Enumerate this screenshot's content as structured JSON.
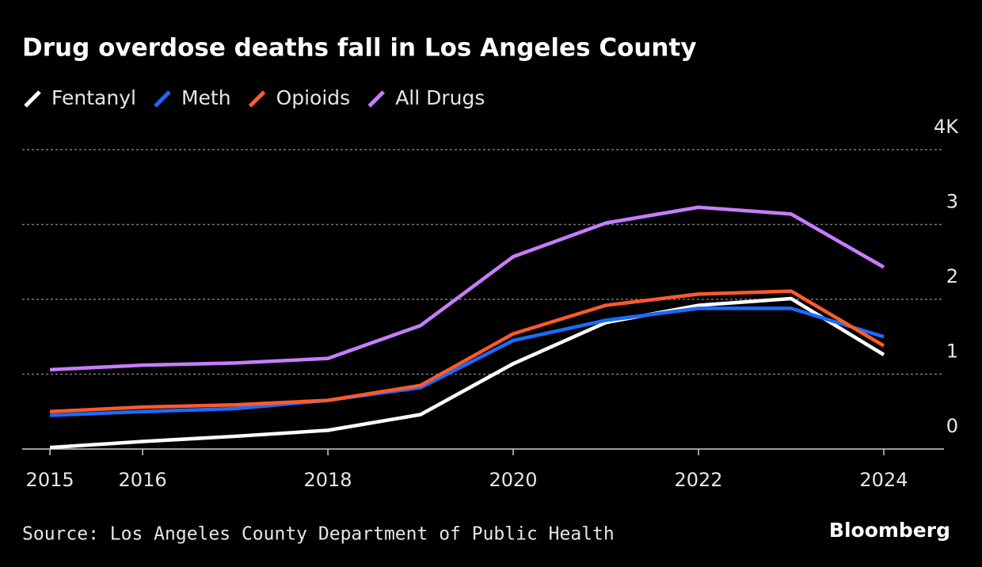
{
  "chart_data": {
    "type": "line",
    "title": "Drug overdose deaths fall in Los Angeles County",
    "source": "Source: Los Angeles County Department of Public Health",
    "brand": "Bloomberg",
    "x": [
      2015,
      2016,
      2017,
      2018,
      2019,
      2020,
      2021,
      2022,
      2023,
      2024
    ],
    "series": [
      {
        "name": "Fentanyl",
        "color": "#ffffff",
        "values": [
          0.02,
          0.1,
          0.17,
          0.25,
          0.46,
          1.14,
          1.69,
          1.92,
          2.01,
          1.26
        ]
      },
      {
        "name": "Meth",
        "color": "#1a6cff",
        "values": [
          0.45,
          0.5,
          0.54,
          0.65,
          0.82,
          1.45,
          1.72,
          1.88,
          1.88,
          1.5
        ]
      },
      {
        "name": "Opioids",
        "color": "#ff5a2c",
        "values": [
          0.5,
          0.56,
          0.59,
          0.65,
          0.85,
          1.54,
          1.92,
          2.07,
          2.11,
          1.38
        ]
      },
      {
        "name": "All Drugs",
        "color": "#c77dff",
        "values": [
          1.06,
          1.12,
          1.15,
          1.21,
          1.65,
          2.57,
          3.02,
          3.23,
          3.14,
          2.43
        ]
      }
    ],
    "xlim": [
      2014.7,
      2024.65
    ],
    "xticks": [
      2015,
      2016,
      2018,
      2020,
      2022,
      2024
    ],
    "ylim": [
      0,
      4
    ],
    "yticks": [
      0,
      1,
      2,
      3,
      {
        "value": 4,
        "label": "4K"
      }
    ],
    "grid": true
  }
}
